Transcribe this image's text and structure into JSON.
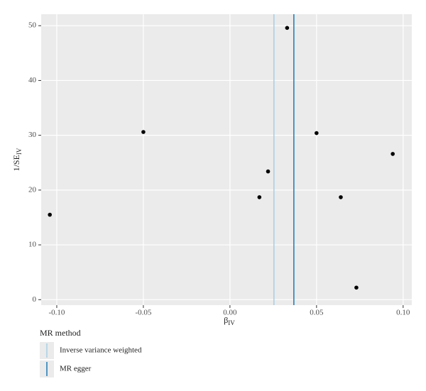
{
  "chart_data": {
    "type": "scatter",
    "xlabel": {
      "main": "β",
      "sub": "IV"
    },
    "ylabel": {
      "main": "1/SE",
      "sub": "IV"
    },
    "series": [
      {
        "color": "#000000",
        "x": [
          -0.104,
          -0.05,
          0.017,
          0.022,
          0.033,
          0.05,
          0.064,
          0.073,
          0.094
        ],
        "values": [
          15.5,
          30.6,
          18.7,
          23.4,
          49.6,
          30.4,
          18.7,
          2.2,
          26.6
        ]
      }
    ],
    "vlines": [
      {
        "name": "Inverse variance weighted",
        "color": "#a6cee3",
        "value": 0.0254
      },
      {
        "name": "MR egger",
        "color": "#1f78b4",
        "value": 0.0369
      }
    ],
    "legend_title": "MR method",
    "legend": "bottom-left",
    "xlim": [
      -0.109,
      0.105
    ],
    "xticks": [
      {
        "value": -0.1,
        "label": "-0.10"
      },
      -0.05,
      {
        "value": 0,
        "label": "0.00"
      },
      0.05,
      {
        "value": 0.1,
        "label": "0.10"
      }
    ],
    "ylim": [
      -1.0,
      52.1
    ],
    "yticks": [
      0,
      10,
      20,
      30,
      40,
      50
    ],
    "grid": true,
    "background": "#ebebeb"
  }
}
